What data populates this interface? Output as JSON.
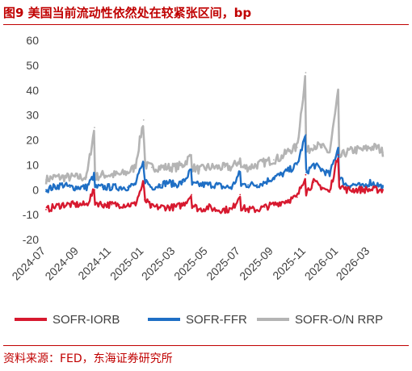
{
  "header": {
    "title": "图9  美国当前流动性依然处在较紧张区间，bp"
  },
  "footer": {
    "source": "资料来源：FED，东海证券研究所"
  },
  "chart_data": {
    "type": "line",
    "title": "美国当前流动性依然处在较紧张区间，bp",
    "ylim": [
      -20,
      60
    ],
    "yticks": [
      -20,
      -10,
      0,
      10,
      20,
      30,
      40,
      50,
      60
    ],
    "x_range": [
      "2024-07-01",
      "2026-03-31"
    ],
    "xticks": [
      "2024-07",
      "2024-09",
      "2024-11",
      "2025-01",
      "2025-03",
      "2025-05",
      "2025-07",
      "2025-09",
      "2025-11",
      "2026-01",
      "2026-03"
    ],
    "legend_position": "bottom",
    "grid": false,
    "series": [
      {
        "name": "SOFR-IORB",
        "color": "#d7192f",
        "x": [
          "2024-07-01",
          "2024-07-15",
          "2024-08-01",
          "2024-08-15",
          "2024-09-01",
          "2024-09-15",
          "2024-09-30",
          "2024-10-01",
          "2024-10-15",
          "2024-11-01",
          "2024-11-15",
          "2024-12-01",
          "2024-12-15",
          "2024-12-31",
          "2025-01-02",
          "2025-01-15",
          "2025-02-01",
          "2025-02-15",
          "2025-03-01",
          "2025-03-15",
          "2025-03-31",
          "2025-04-01",
          "2025-04-15",
          "2025-05-01",
          "2025-05-15",
          "2025-06-01",
          "2025-06-15",
          "2025-06-30",
          "2025-07-01",
          "2025-07-15",
          "2025-08-01",
          "2025-08-15",
          "2025-09-01",
          "2025-09-15",
          "2025-10-01",
          "2025-10-15",
          "2025-10-31",
          "2025-11-01",
          "2025-11-15",
          "2025-12-01",
          "2025-12-15",
          "2025-12-31",
          "2026-01-02",
          "2026-01-15",
          "2026-02-01",
          "2026-02-15",
          "2026-03-01",
          "2026-03-15",
          "2026-03-25"
        ],
        "values": [
          -8,
          -7,
          -6,
          -6,
          -6,
          -6,
          0,
          -5,
          -6,
          -6,
          -6,
          -6,
          -6,
          3,
          -4,
          -7,
          -7,
          -7,
          -7,
          -6,
          -2,
          -6,
          -8,
          -7,
          -8,
          -8,
          -8,
          -2,
          -7,
          -8,
          -8,
          -7,
          -6,
          -5,
          -4,
          -3,
          6,
          -1,
          3,
          1,
          -1,
          14,
          2,
          0,
          0,
          0,
          0,
          0,
          0
        ]
      },
      {
        "name": "SOFR-FFR",
        "color": "#1f6fc5",
        "x": [
          "2024-07-01",
          "2024-07-15",
          "2024-08-01",
          "2024-08-15",
          "2024-09-01",
          "2024-09-15",
          "2024-09-30",
          "2024-10-01",
          "2024-10-15",
          "2024-11-01",
          "2024-11-15",
          "2024-12-01",
          "2024-12-15",
          "2024-12-31",
          "2025-01-02",
          "2025-01-15",
          "2025-02-01",
          "2025-02-15",
          "2025-03-01",
          "2025-03-15",
          "2025-03-31",
          "2025-04-01",
          "2025-04-15",
          "2025-05-01",
          "2025-05-15",
          "2025-06-01",
          "2025-06-15",
          "2025-06-30",
          "2025-07-01",
          "2025-07-15",
          "2025-08-01",
          "2025-08-15",
          "2025-09-01",
          "2025-09-15",
          "2025-10-01",
          "2025-10-15",
          "2025-10-31",
          "2025-11-01",
          "2025-11-15",
          "2025-12-01",
          "2025-12-15",
          "2025-12-31",
          "2026-01-02",
          "2026-01-15",
          "2026-02-01",
          "2026-02-15",
          "2026-03-01",
          "2026-03-15",
          "2026-03-25"
        ],
        "values": [
          0,
          1,
          2,
          1,
          1,
          1,
          6,
          1,
          1,
          1,
          1,
          1,
          2,
          11,
          4,
          1,
          2,
          3,
          2,
          3,
          8,
          2,
          2,
          2,
          2,
          1,
          1,
          7,
          2,
          2,
          2,
          3,
          5,
          6,
          8,
          10,
          22,
          7,
          10,
          8,
          6,
          17,
          5,
          2,
          2,
          1,
          3,
          2,
          1
        ]
      },
      {
        "name": "SOFR-O/N RRP",
        "color": "#b4b4b4",
        "x": [
          "2024-07-01",
          "2024-07-15",
          "2024-08-01",
          "2024-08-15",
          "2024-09-01",
          "2024-09-15",
          "2024-09-30",
          "2024-10-01",
          "2024-10-15",
          "2024-11-01",
          "2024-11-15",
          "2024-12-01",
          "2024-12-15",
          "2024-12-31",
          "2025-01-02",
          "2025-01-15",
          "2025-02-01",
          "2025-02-15",
          "2025-03-01",
          "2025-03-15",
          "2025-03-31",
          "2025-04-01",
          "2025-04-15",
          "2025-05-01",
          "2025-05-15",
          "2025-06-01",
          "2025-06-15",
          "2025-06-30",
          "2025-07-01",
          "2025-07-15",
          "2025-08-01",
          "2025-08-15",
          "2025-09-01",
          "2025-09-15",
          "2025-10-01",
          "2025-10-15",
          "2025-10-31",
          "2025-11-01",
          "2025-11-15",
          "2025-12-01",
          "2025-12-15",
          "2025-12-31",
          "2026-01-02",
          "2026-01-15",
          "2026-02-01",
          "2026-02-15",
          "2026-03-01",
          "2026-03-15",
          "2026-03-25"
        ],
        "values": [
          4,
          5,
          5,
          5,
          5,
          5,
          25,
          5,
          6,
          6,
          6,
          7,
          9,
          28,
          10,
          9,
          9,
          9,
          9,
          10,
          14,
          9,
          8,
          9,
          9,
          9,
          9,
          12,
          9,
          9,
          10,
          11,
          12,
          13,
          16,
          17,
          47,
          15,
          18,
          17,
          15,
          39,
          13,
          15,
          16,
          16,
          17,
          17,
          15
        ]
      }
    ]
  }
}
